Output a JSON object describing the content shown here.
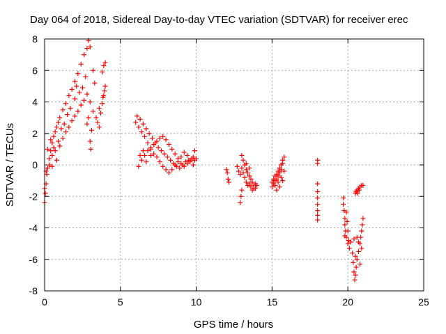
{
  "chart_data": {
    "type": "scatter",
    "title": "Day 064 of 2018, Sidereal Day-to-day VTEC variation (SDTVAR) for receiver erec",
    "xlabel": "GPS time / hours",
    "ylabel": "SDTVAR / TECUs",
    "xlim": [
      0,
      25
    ],
    "ylim": [
      -8,
      8
    ],
    "xticks": [
      0,
      5,
      10,
      15,
      20,
      25
    ],
    "xtick_labels": [
      "0",
      "5",
      "10",
      "15",
      "20",
      "25"
    ],
    "yticks": [
      -8,
      -6,
      -4,
      -2,
      0,
      2,
      4,
      6,
      8
    ],
    "ytick_labels": [
      "-8",
      "-6",
      "-4",
      "-2",
      "0",
      "2",
      "4",
      "6",
      "8"
    ],
    "grid": true,
    "marker": "+",
    "color": "#ff0000",
    "series": [
      {
        "name": "early rising branch",
        "points": [
          [
            0.0,
            -2.4
          ],
          [
            0.05,
            -1.8
          ],
          [
            0.1,
            -1.2
          ],
          [
            0.15,
            -0.6
          ],
          [
            0.2,
            -0.2
          ],
          [
            0.3,
            0.4
          ],
          [
            0.4,
            0.9
          ],
          [
            0.5,
            1.4
          ],
          [
            0.6,
            1.8
          ],
          [
            0.7,
            2.1
          ],
          [
            0.8,
            2.4
          ],
          [
            0.9,
            2.7
          ],
          [
            1.0,
            3.0
          ],
          [
            1.2,
            3.5
          ],
          [
            1.4,
            3.9
          ],
          [
            1.6,
            4.4
          ],
          [
            1.8,
            4.8
          ],
          [
            2.0,
            5.3
          ],
          [
            2.2,
            5.8
          ],
          [
            2.4,
            6.4
          ],
          [
            2.6,
            7.0
          ],
          [
            2.8,
            7.4
          ],
          [
            2.9,
            7.9
          ],
          [
            3.0,
            7.5
          ]
        ]
      },
      {
        "name": "early lower branch",
        "points": [
          [
            0.1,
            -0.4
          ],
          [
            0.3,
            0.0
          ],
          [
            0.5,
            0.6
          ],
          [
            0.7,
            0.9
          ],
          [
            0.8,
            0.3
          ],
          [
            1.0,
            1.2
          ],
          [
            1.2,
            1.7
          ],
          [
            1.4,
            2.1
          ],
          [
            1.6,
            2.4
          ],
          [
            1.8,
            2.8
          ],
          [
            2.0,
            3.1
          ],
          [
            2.2,
            3.4
          ],
          [
            2.4,
            3.8
          ],
          [
            2.6,
            4.1
          ],
          [
            2.8,
            4.5
          ],
          [
            3.0,
            4.0
          ],
          [
            3.2,
            3.4
          ],
          [
            3.4,
            3.0
          ],
          [
            3.6,
            3.6
          ],
          [
            3.8,
            3.9
          ],
          [
            3.9,
            4.4
          ],
          [
            4.0,
            5.0
          ]
        ]
      },
      {
        "name": "early scattered points",
        "points": [
          [
            0.0,
            -1.5
          ],
          [
            0.2,
            1.0
          ],
          [
            0.4,
            1.6
          ],
          [
            0.5,
            -0.1
          ],
          [
            0.6,
            1.1
          ],
          [
            0.9,
            1.5
          ],
          [
            1.1,
            2.3
          ],
          [
            1.3,
            2.6
          ],
          [
            1.5,
            3.2
          ],
          [
            1.7,
            3.6
          ],
          [
            2.0,
            4.2
          ],
          [
            2.1,
            5.0
          ],
          [
            2.3,
            4.6
          ],
          [
            2.5,
            4.9
          ],
          [
            2.7,
            5.6
          ],
          [
            2.8,
            2.6
          ],
          [
            2.9,
            3.0
          ],
          [
            3.0,
            1.5
          ],
          [
            3.05,
            1.0
          ],
          [
            3.1,
            2.2
          ],
          [
            3.2,
            6.0
          ],
          [
            3.3,
            5.2
          ],
          [
            3.5,
            2.7
          ],
          [
            3.6,
            2.4
          ],
          [
            3.7,
            3.3
          ],
          [
            3.8,
            5.9
          ],
          [
            3.9,
            6.3
          ],
          [
            4.0,
            6.5
          ],
          [
            3.85,
            4.3
          ],
          [
            3.95,
            4.7
          ]
        ]
      },
      {
        "name": "morning arc 1",
        "points": [
          [
            6.1,
            3.1
          ],
          [
            6.3,
            2.9
          ],
          [
            6.5,
            2.6
          ],
          [
            6.7,
            2.3
          ],
          [
            6.9,
            2.0
          ],
          [
            7.1,
            1.7
          ],
          [
            7.3,
            1.4
          ],
          [
            7.5,
            1.1
          ],
          [
            7.7,
            0.9
          ],
          [
            7.9,
            0.7
          ],
          [
            8.1,
            0.5
          ],
          [
            8.3,
            0.3
          ],
          [
            8.5,
            0.1
          ],
          [
            8.7,
            -0.1
          ],
          [
            8.9,
            -0.2
          ],
          [
            9.1,
            0.0
          ],
          [
            9.3,
            0.2
          ],
          [
            9.5,
            0.3
          ],
          [
            9.7,
            0.4
          ],
          [
            9.9,
            0.3
          ]
        ]
      },
      {
        "name": "morning arc 2",
        "points": [
          [
            6.2,
            -0.1
          ],
          [
            6.4,
            0.3
          ],
          [
            6.6,
            0.6
          ],
          [
            6.8,
            0.9
          ],
          [
            7.0,
            1.1
          ],
          [
            7.2,
            1.3
          ],
          [
            7.4,
            1.5
          ],
          [
            7.6,
            1.7
          ],
          [
            7.8,
            1.8
          ],
          [
            8.0,
            1.6
          ],
          [
            8.2,
            1.3
          ],
          [
            8.4,
            1.0
          ],
          [
            8.6,
            0.7
          ],
          [
            8.8,
            0.4
          ],
          [
            9.0,
            0.1
          ],
          [
            9.2,
            -0.1
          ],
          [
            9.4,
            0.1
          ],
          [
            9.6,
            0.3
          ],
          [
            9.8,
            0.5
          ],
          [
            10.0,
            0.4
          ]
        ]
      },
      {
        "name": "morning arc 3",
        "points": [
          [
            6.0,
            2.7
          ],
          [
            6.2,
            2.4
          ],
          [
            6.4,
            2.1
          ],
          [
            6.6,
            1.8
          ],
          [
            6.8,
            1.4
          ],
          [
            7.0,
            1.0
          ],
          [
            7.2,
            0.7
          ],
          [
            7.4,
            0.5
          ],
          [
            7.6,
            0.2
          ],
          [
            7.8,
            -0.1
          ],
          [
            8.0,
            -0.3
          ],
          [
            8.2,
            -0.5
          ],
          [
            8.4,
            -0.3
          ],
          [
            8.6,
            0.0
          ],
          [
            8.8,
            0.2
          ],
          [
            9.0,
            0.5
          ],
          [
            9.2,
            0.8
          ],
          [
            9.4,
            0.6
          ],
          [
            9.6,
            0.2
          ],
          [
            9.8,
            0.0
          ],
          [
            6.3,
            0.6
          ],
          [
            6.5,
            0.9
          ],
          [
            6.7,
            0.2
          ],
          [
            7.0,
            0.6
          ],
          [
            9.9,
            0.9
          ]
        ]
      },
      {
        "name": "midday cluster",
        "points": [
          [
            12.0,
            -0.3
          ],
          [
            12.05,
            -0.5
          ],
          [
            12.1,
            -0.9
          ],
          [
            12.15,
            -1.1
          ],
          [
            13.0,
            0.6
          ],
          [
            13.1,
            0.3
          ],
          [
            13.2,
            0.0
          ],
          [
            13.3,
            -0.3
          ],
          [
            13.4,
            -0.5
          ],
          [
            13.5,
            -0.7
          ],
          [
            13.6,
            -0.9
          ],
          [
            13.7,
            -1.1
          ],
          [
            13.8,
            -1.3
          ],
          [
            13.9,
            -1.5
          ],
          [
            14.0,
            -1.3
          ],
          [
            13.0,
            -0.2
          ],
          [
            13.1,
            -0.5
          ],
          [
            13.2,
            -0.8
          ],
          [
            13.3,
            -1.1
          ],
          [
            13.4,
            -1.3
          ],
          [
            13.5,
            -1.2
          ],
          [
            13.6,
            -1.4
          ],
          [
            13.7,
            -1.6
          ],
          [
            13.8,
            -1.5
          ],
          [
            13.9,
            -1.2
          ],
          [
            12.7,
            -0.1
          ],
          [
            12.8,
            -0.4
          ],
          [
            12.9,
            -0.6
          ],
          [
            13.0,
            -1.6
          ],
          [
            12.95,
            -2.0
          ],
          [
            12.9,
            -2.4
          ],
          [
            13.3,
            0.1
          ],
          [
            13.5,
            -0.2
          ]
        ]
      },
      {
        "name": "afternoon cluster",
        "points": [
          [
            15.0,
            -1.4
          ],
          [
            15.1,
            -1.2
          ],
          [
            15.2,
            -1.0
          ],
          [
            15.3,
            -0.9
          ],
          [
            15.4,
            -0.7
          ],
          [
            15.5,
            -0.5
          ],
          [
            15.6,
            -0.3
          ],
          [
            15.7,
            0.1
          ],
          [
            15.8,
            0.5
          ],
          [
            15.0,
            -1.1
          ],
          [
            15.1,
            -0.9
          ],
          [
            15.2,
            -0.7
          ],
          [
            15.3,
            -0.6
          ],
          [
            15.4,
            -0.4
          ],
          [
            15.5,
            -0.2
          ],
          [
            15.6,
            0.0
          ],
          [
            15.7,
            0.3
          ],
          [
            15.2,
            -1.3
          ],
          [
            15.4,
            -1.1
          ],
          [
            15.6,
            -0.8
          ],
          [
            15.8,
            -0.4
          ],
          [
            15.3,
            -1.6
          ],
          [
            15.5,
            -1.4
          ],
          [
            15.7,
            -1.0
          ]
        ]
      },
      {
        "name": "evening scatter",
        "points": [
          [
            18.0,
            0.3
          ],
          [
            18.0,
            0.1
          ],
          [
            18.0,
            -1.2
          ],
          [
            18.0,
            -1.7
          ],
          [
            18.0,
            -2.1
          ],
          [
            18.0,
            -2.5
          ],
          [
            18.0,
            -2.9
          ],
          [
            18.0,
            -3.2
          ],
          [
            18.0,
            -3.5
          ],
          [
            19.7,
            -2.1
          ],
          [
            19.7,
            -2.5
          ],
          [
            19.75,
            -2.9
          ],
          [
            19.8,
            -3.4
          ],
          [
            19.8,
            -3.8
          ],
          [
            19.85,
            -4.2
          ],
          [
            19.9,
            -4.6
          ],
          [
            20.0,
            -5.0
          ],
          [
            19.9,
            -3.0
          ],
          [
            19.95,
            -3.6
          ],
          [
            20.0,
            -4.2
          ],
          [
            20.05,
            -4.8
          ],
          [
            20.1,
            -5.3
          ],
          [
            19.8,
            -4.5
          ],
          [
            20.2,
            -4.9
          ],
          [
            20.3,
            -5.6
          ],
          [
            20.35,
            -6.2
          ],
          [
            20.4,
            -6.8
          ],
          [
            20.45,
            -7.3
          ],
          [
            20.5,
            -7.0
          ],
          [
            20.55,
            -6.5
          ],
          [
            20.6,
            -6.0
          ],
          [
            20.7,
            -5.5
          ],
          [
            20.8,
            -5.0
          ],
          [
            20.85,
            -4.6
          ],
          [
            20.9,
            -4.2
          ],
          [
            20.95,
            -3.8
          ],
          [
            21.0,
            -3.4
          ],
          [
            20.6,
            -4.6
          ],
          [
            20.7,
            -4.9
          ],
          [
            20.5,
            -5.8
          ],
          [
            20.9,
            -5.3
          ],
          [
            20.8,
            -6.3
          ],
          [
            20.4,
            -4.7
          ],
          [
            20.6,
            -1.6
          ],
          [
            20.7,
            -1.5
          ],
          [
            20.8,
            -1.4
          ],
          [
            20.9,
            -1.3
          ],
          [
            21.0,
            -1.3
          ],
          [
            20.5,
            -1.8
          ],
          [
            20.55,
            -1.7
          ],
          [
            20.65,
            -1.8
          ],
          [
            20.75,
            -1.6
          ]
        ]
      }
    ]
  }
}
